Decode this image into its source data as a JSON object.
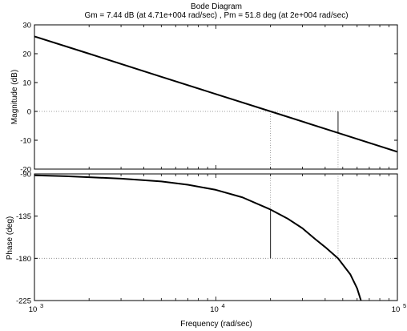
{
  "chart_data": {
    "type": "line",
    "title": "Bode Diagram",
    "subtitle": "Gm = 7.44 dB (at 4.71e+004 rad/sec) ,  Pm = 51.8 deg (at 2e+004 rad/sec)",
    "xlabel": "Frequency  (rad/sec)",
    "x_scale": "log",
    "xlim": [
      1000,
      100000
    ],
    "x_ticks": [
      {
        "base": "10",
        "exp": "3"
      },
      {
        "base": "10",
        "exp": "4"
      },
      {
        "base": "10",
        "exp": "5"
      }
    ],
    "grid": "reference lines only (0 dB, -180 deg, crossover frequencies)",
    "panels": [
      {
        "name": "magnitude",
        "ylabel": "Magnitude (dB)",
        "ylim": [
          -20,
          30
        ],
        "y_ticks": [
          "30",
          "20",
          "10",
          "0",
          "-10",
          "-20"
        ],
        "y_tick_values": [
          30,
          20,
          10,
          0,
          -10,
          -20
        ],
        "series": [
          {
            "x": [
              1000,
              2000,
              5000,
              10000,
              20000,
              47100,
              100000
            ],
            "y": [
              26,
              20,
              12,
              6,
              0,
              -7.44,
              -14
            ]
          }
        ],
        "reference_y": 0,
        "markers": [
          {
            "x": 20000,
            "y_from": 0,
            "y_to": -20,
            "style": "dotted"
          },
          {
            "x": 47100,
            "y_from": 0,
            "y_to": -7.44,
            "style": "solid"
          },
          {
            "x": 47100,
            "y_from": -7.44,
            "y_to": -20,
            "style": "dotted"
          }
        ]
      },
      {
        "name": "phase",
        "ylabel": "Phase (deg)",
        "ylim": [
          -225,
          -90
        ],
        "y_ticks": [
          "-90",
          "-135",
          "-180",
          "-225"
        ],
        "y_tick_values": [
          -90,
          -135,
          -180,
          -225
        ],
        "series": [
          {
            "x": [
              1000,
              1500,
              2000,
              3000,
              5000,
              7000,
              10000,
              14000,
              20000,
              25000,
              30000,
              35000,
              40000,
              47100,
              55000,
              60000,
              63000
            ],
            "y": [
              -91.5,
              -92.5,
              -93.5,
              -95,
              -98,
              -101.5,
              -107,
              -115,
              -128,
              -138,
              -148,
              -159,
              -168,
              -180,
              -197,
              -212,
              -225
            ]
          }
        ],
        "reference_y": -180,
        "markers": [
          {
            "x": 20000,
            "y_from": -180,
            "y_to": -128.2,
            "style": "solid"
          },
          {
            "x": 20000,
            "y_from": -128.2,
            "y_to": -90,
            "style": "dotted"
          },
          {
            "x": 47100,
            "y_from": -180,
            "y_to": -90,
            "style": "dotted"
          }
        ]
      }
    ]
  }
}
